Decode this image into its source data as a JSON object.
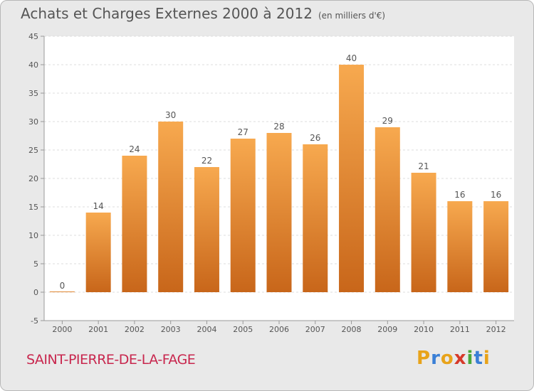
{
  "title": "Achats et Charges Externes 2000 à 2012",
  "unit": "(en milliers d'€)",
  "city": "SAINT-PIERRE-DE-LA-FAGE",
  "logo": {
    "letters": [
      "P",
      "r",
      "o",
      "x",
      "i",
      "t",
      "i"
    ],
    "colors": [
      "#e8a31a",
      "#3a7fd6",
      "#e8a31a",
      "#d63a2a",
      "#4aa83a",
      "#3a7fd6",
      "#e8a31a"
    ]
  },
  "colors": {
    "bar_light": "#f7a94f",
    "bar_dark": "#c8661a",
    "text": "#555555",
    "city": "#c8274e",
    "background": "#e9e9e9",
    "plot_background": "#ffffff"
  },
  "chart_data": {
    "type": "bar",
    "categories": [
      "2000",
      "2001",
      "2002",
      "2003",
      "2004",
      "2005",
      "2006",
      "2007",
      "2008",
      "2009",
      "2010",
      "2011",
      "2012"
    ],
    "values": [
      0,
      14,
      24,
      30,
      22,
      27,
      28,
      26,
      40,
      29,
      21,
      16,
      16
    ],
    "data_labels": [
      "0",
      "14",
      "24",
      "30",
      "22",
      "27",
      "28",
      "26",
      "40",
      "29",
      "21",
      "16",
      "16"
    ],
    "ylim": [
      -5,
      45
    ],
    "yticks": [
      -5,
      0,
      5,
      10,
      15,
      20,
      25,
      30,
      35,
      40,
      45
    ],
    "grid": true,
    "xlabel": "",
    "ylabel": ""
  }
}
